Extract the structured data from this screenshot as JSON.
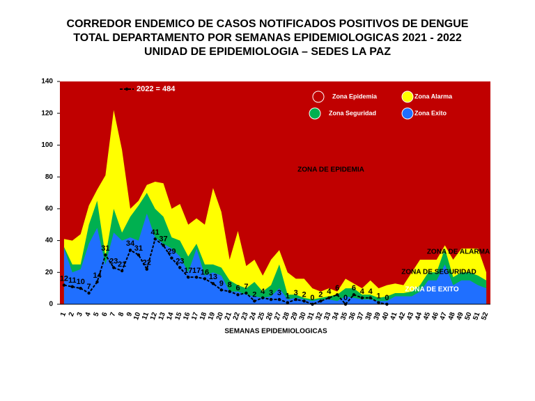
{
  "chart_data": {
    "type": "area",
    "title": [
      "CORREDOR ENDEMICO DE CASOS NOTIFICADOS POSITIVOS DE DENGUE",
      "TOTAL DEPARTAMENTO  POR SEMANAS EPIDEMIOLOGICAS  2021 - 2022",
      "UNIDAD DE EPIDEMIOLOGIA – SEDES LA PAZ"
    ],
    "x_label": "SEMANAS EPIDEMIOLOGICAS",
    "categories": [
      "1",
      "2",
      "3",
      "4",
      "5",
      "6",
      "7",
      "8",
      "9",
      "10",
      "11",
      "12",
      "13",
      "14",
      "15",
      "16",
      "17",
      "18",
      "19",
      "20",
      "21",
      "22",
      "23",
      "24",
      "25",
      "26",
      "27",
      "28",
      "29",
      "30",
      "31",
      "32",
      "33",
      "34",
      "35",
      "36",
      "37",
      "38",
      "39",
      "40",
      "41",
      "42",
      "43",
      "44",
      "45",
      "46",
      "47",
      "48",
      "49",
      "50",
      "51",
      "52"
    ],
    "background_zone": {
      "name": "Zona Epidemia",
      "color": "#c00000"
    },
    "series": [
      {
        "name": "Zona Alarma",
        "color": "#ffff00",
        "values": [
          41,
          40,
          44,
          62,
          72,
          81,
          122,
          97,
          60,
          65,
          75,
          77,
          76,
          60,
          63,
          50,
          54,
          50,
          73,
          58,
          28,
          46,
          24,
          28,
          18,
          28,
          34,
          20,
          16,
          16,
          10,
          8,
          10,
          8,
          16,
          13,
          10,
          15,
          10,
          12,
          13,
          12,
          20,
          28,
          28,
          28,
          37,
          28,
          35,
          35,
          35,
          20
        ]
      },
      {
        "name": "Zona Seguridad",
        "color": "#00b050",
        "values": [
          36,
          25,
          25,
          50,
          65,
          30,
          60,
          45,
          55,
          62,
          70,
          60,
          55,
          42,
          40,
          30,
          38,
          25,
          25,
          23,
          15,
          12,
          10,
          14,
          8,
          12,
          25,
          6,
          6,
          4,
          3,
          4,
          5,
          6,
          10,
          10,
          6,
          6,
          4,
          5,
          7,
          7,
          8,
          12,
          20,
          20,
          35,
          17,
          20,
          20,
          18,
          15
        ]
      },
      {
        "name": "Zona Exito",
        "color": "#1f6fff",
        "values": [
          35,
          20,
          22,
          38,
          48,
          25,
          45,
          40,
          42,
          40,
          57,
          42,
          38,
          35,
          30,
          20,
          35,
          18,
          20,
          18,
          8,
          8,
          6,
          5,
          4,
          5,
          10,
          3,
          4,
          3,
          2,
          3,
          3,
          2,
          5,
          4,
          3,
          3,
          2,
          2,
          5,
          5,
          5,
          8,
          15,
          15,
          25,
          12,
          15,
          15,
          12,
          10
        ]
      },
      {
        "name": "2022 = 484",
        "type": "line",
        "color": "#000000",
        "values": [
          12,
          11,
          10,
          7,
          14,
          31,
          23,
          21,
          34,
          31,
          22,
          41,
          37,
          29,
          23,
          17,
          17,
          16,
          13,
          9,
          8,
          6,
          7,
          2,
          4,
          3,
          3,
          1,
          3,
          2,
          0,
          2,
          4,
          6,
          0,
          6,
          4,
          4,
          1,
          0,
          null,
          null,
          null,
          null,
          null,
          null,
          null,
          null,
          null,
          null,
          null,
          null
        ]
      }
    ],
    "annotations": [
      "ZONA DE EPIDEMIA",
      "ZONA DE ALARMA",
      "ZONA DE  SEGURIDAD",
      "ZONA DE  EXITO"
    ],
    "ylim": [
      0,
      140
    ],
    "yticks": [
      0,
      20,
      40,
      60,
      80,
      100,
      120,
      140
    ]
  }
}
